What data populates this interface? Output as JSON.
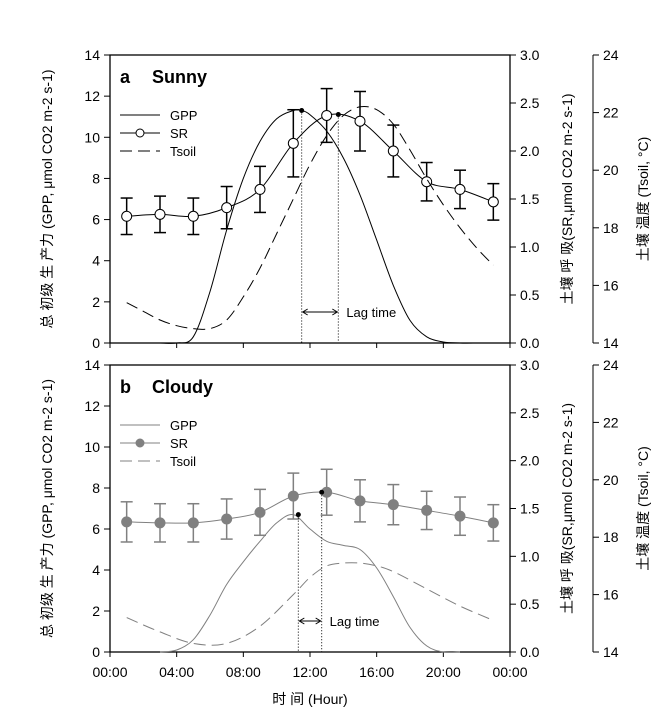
{
  "chart_data": [
    {
      "type": "line",
      "panel_label": "a",
      "title": "Sunny",
      "xlabel": "时 间 (Hour)",
      "x_ticks": [
        "00:00",
        "04:00",
        "08:00",
        "12:00",
        "16:00",
        "20:00",
        "00:00"
      ],
      "xlim_hours": [
        0,
        24
      ],
      "ylabel_left": "总 初级 生 产力 (GPP, μmol CO2 m-2 s-1)",
      "ylabel_right": "土壤 呼 吸(SR,μmol CO2 m-2 s-1)",
      "ylabel_right2": "土壤 温度 (Tsoil, °C)",
      "ylim_left": [
        0,
        14
      ],
      "yticks_left": [
        "0",
        "2",
        "4",
        "6",
        "8",
        "10",
        "12",
        "14"
      ],
      "ylim_right": [
        0,
        3.0
      ],
      "yticks_right": [
        "0.0",
        "0.5",
        "1.0",
        "1.5",
        "2.0",
        "2.5",
        "3.0"
      ],
      "ylim_right2": [
        14,
        24
      ],
      "yticks_right2": [
        "14",
        "16",
        "18",
        "20",
        "22",
        "24"
      ],
      "legend": [
        "GPP",
        "SR",
        "Tsoil"
      ],
      "legend_position": "top-left",
      "sr_marker": "open-circle",
      "line_color": "#000000",
      "series": [
        {
          "name": "GPP",
          "axis": "left",
          "x": [
            0,
            2,
            3,
            4,
            5,
            6,
            7,
            8,
            9,
            10,
            11,
            11.5,
            12,
            13,
            14,
            15,
            16,
            17,
            18,
            19,
            20,
            21,
            22
          ],
          "values": [
            0,
            0,
            0,
            0,
            0.3,
            2.5,
            5.5,
            8.0,
            9.8,
            10.9,
            11.3,
            11.3,
            11.1,
            10.3,
            9.0,
            7.2,
            5.0,
            2.8,
            1.1,
            0.3,
            0.05,
            0,
            0
          ]
        },
        {
          "name": "SR",
          "axis": "right",
          "x": [
            1,
            3,
            5,
            7,
            9,
            11,
            13,
            15,
            17,
            19,
            21,
            23
          ],
          "values": [
            1.32,
            1.34,
            1.32,
            1.41,
            1.6,
            2.08,
            2.37,
            2.31,
            2.0,
            1.68,
            1.6,
            1.47
          ],
          "error": [
            0.19,
            0.19,
            0.19,
            0.22,
            0.24,
            0.35,
            0.28,
            0.31,
            0.27,
            0.2,
            0.2,
            0.19
          ]
        },
        {
          "name": "Tsoil",
          "axis": "right2",
          "x": [
            1,
            2,
            3,
            4,
            5,
            6,
            7,
            8,
            9,
            10,
            11,
            12,
            13,
            14,
            15,
            16,
            17,
            18,
            19,
            20,
            21,
            22,
            23
          ],
          "values": [
            15.4,
            15.1,
            14.8,
            14.6,
            14.5,
            14.5,
            14.8,
            15.6,
            16.6,
            17.8,
            19.0,
            20.2,
            21.2,
            21.9,
            22.2,
            22.1,
            21.6,
            20.7,
            19.7,
            18.8,
            18.0,
            17.3,
            16.7
          ]
        }
      ],
      "gpp_peak_hour": 11.5,
      "sr_peak_hour": 13.7,
      "annotation": "Lag time"
    },
    {
      "type": "line",
      "panel_label": "b",
      "title": "Cloudy",
      "xlabel": "时 间 (Hour)",
      "x_ticks": [
        "00:00",
        "04:00",
        "08:00",
        "12:00",
        "16:00",
        "20:00",
        "00:00"
      ],
      "xlim_hours": [
        0,
        24
      ],
      "ylabel_left": "总 初级 生 产力 (GPP, μmol CO2 m-2 s-1)",
      "ylabel_right": "土壤 呼 吸(SR,μmol CO2 m-2 s-1)",
      "ylabel_right2": "土壤 温度 (Tsoil, °C)",
      "ylim_left": [
        0,
        14
      ],
      "yticks_left": [
        "0",
        "2",
        "4",
        "6",
        "8",
        "10",
        "12",
        "14"
      ],
      "ylim_right": [
        0,
        3.0
      ],
      "yticks_right": [
        "0.0",
        "0.5",
        "1.0",
        "1.5",
        "2.0",
        "2.5",
        "3.0"
      ],
      "ylim_right2": [
        14,
        24
      ],
      "yticks_right2": [
        "14",
        "16",
        "18",
        "20",
        "22",
        "24"
      ],
      "legend": [
        "GPP",
        "SR",
        "Tsoil"
      ],
      "legend_position": "top-left",
      "sr_marker": "filled-circle",
      "line_color": "#808080",
      "series": [
        {
          "name": "GPP",
          "axis": "left",
          "x": [
            3,
            4,
            5,
            6,
            7,
            8,
            9,
            10,
            11,
            12,
            13,
            14,
            15,
            16,
            17,
            18,
            19,
            20,
            21
          ],
          "values": [
            0,
            0.1,
            0.6,
            1.8,
            3.3,
            4.4,
            5.4,
            6.3,
            6.7,
            6.0,
            5.4,
            5.2,
            5.0,
            4.1,
            2.7,
            1.2,
            0.3,
            0,
            0
          ]
        },
        {
          "name": "SR",
          "axis": "right",
          "x": [
            1,
            3,
            5,
            7,
            9,
            11,
            13,
            15,
            17,
            19,
            21,
            23
          ],
          "values": [
            1.36,
            1.35,
            1.35,
            1.39,
            1.46,
            1.63,
            1.67,
            1.58,
            1.54,
            1.48,
            1.42,
            1.35
          ],
          "error": [
            0.21,
            0.2,
            0.2,
            0.21,
            0.24,
            0.24,
            0.24,
            0.22,
            0.21,
            0.2,
            0.2,
            0.19
          ]
        },
        {
          "name": "Tsoil",
          "axis": "right2",
          "x": [
            1,
            3,
            5,
            7,
            9,
            11,
            12,
            13,
            14,
            15,
            16,
            17,
            19,
            21,
            23
          ],
          "values": [
            15.2,
            14.7,
            14.3,
            14.3,
            14.9,
            16.0,
            16.6,
            17.0,
            17.1,
            17.1,
            17.0,
            16.8,
            16.2,
            15.6,
            15.1
          ]
        }
      ],
      "gpp_peak_hour": 11.3,
      "sr_peak_hour": 12.7,
      "annotation": "Lag time"
    }
  ]
}
